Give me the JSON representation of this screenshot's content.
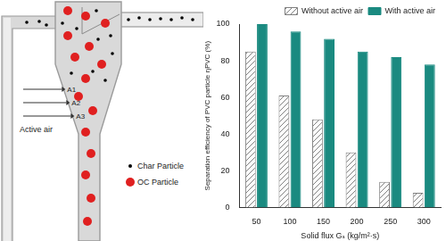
{
  "chart_data": {
    "type": "bar",
    "x_label": "Solid flux Gₛ (kg/m²·s)",
    "y_label": "Separation efficiency of PVC particle ηPVC (%)",
    "categories": [
      "50",
      "100",
      "150",
      "200",
      "250",
      "300"
    ],
    "series": [
      {
        "name": "Without active air",
        "color": "#7f7f7f",
        "values": [
          85,
          61,
          48,
          30,
          14,
          8
        ]
      },
      {
        "name": "With active air",
        "color": "#1a8a80",
        "values": [
          100,
          96,
          92,
          85,
          82,
          78
        ]
      }
    ],
    "ylim": [
      0,
      100
    ],
    "yticks": [
      0,
      20,
      40,
      60,
      80,
      100
    ],
    "grid": false,
    "legend": "top"
  },
  "diagram": {
    "inlet_title": "Active air",
    "inlets": [
      "A1",
      "A2",
      "A3"
    ],
    "particles": [
      {
        "label": "Char Particle",
        "color": "#000000"
      },
      {
        "label": "OC Particle",
        "color": "#e02020"
      }
    ]
  }
}
